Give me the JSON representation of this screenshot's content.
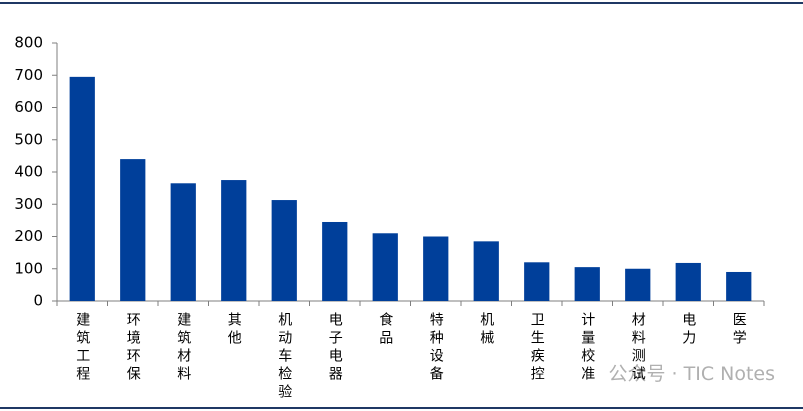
{
  "chart_data": {
    "type": "bar",
    "categories": [
      "建筑工程",
      "环境环保",
      "建筑材料",
      "其他",
      "机动车检验",
      "电子电器",
      "食品",
      "特种设备",
      "机械",
      "卫生疾控",
      "计量校准",
      "材料测试",
      "电力",
      "医学"
    ],
    "values": [
      695,
      440,
      365,
      375,
      313,
      245,
      210,
      200,
      185,
      120,
      105,
      100,
      118,
      90
    ],
    "color": "#003f9a",
    "ylim": [
      0,
      800
    ],
    "yticks": [
      0,
      100,
      200,
      300,
      400,
      500,
      600,
      700,
      800
    ],
    "grid": false,
    "watermark": "公众号 · TIC Notes"
  }
}
